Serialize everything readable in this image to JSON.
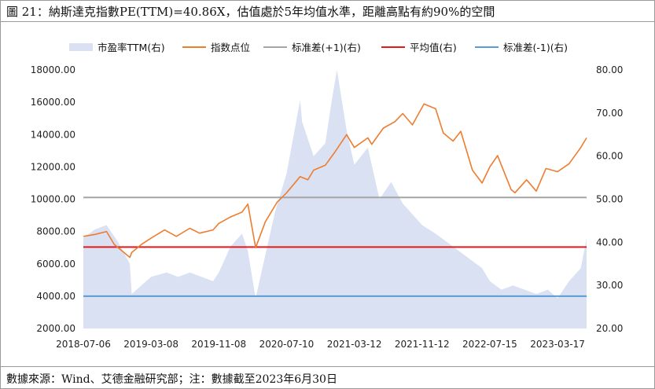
{
  "title": "圖 21：納斯達克指數PE(TTM)=40.86X，估值處於5年均值水準，距離高點有約90%的空間",
  "source": "數據來源：Wind、艾德金融研究部；注：數據截至2023年6月30日",
  "chart_data": {
    "type": "area",
    "legend": [
      {
        "label": "市盈率TTM(右)",
        "kind": "area",
        "color": "#d9e1f2"
      },
      {
        "label": "指数点位",
        "kind": "line",
        "color": "#ed7d31"
      },
      {
        "label": "标准差(+1)(右)",
        "kind": "line",
        "color": "#a5a5a5"
      },
      {
        "label": "平均值(右)",
        "kind": "line",
        "color": "#e31a1c"
      },
      {
        "label": "标准差(-1)(右)",
        "kind": "line",
        "color": "#5b9bd5"
      }
    ],
    "x_ticks": [
      "2018-07-06",
      "2019-03-08",
      "2019-11-08",
      "2020-07-10",
      "2021-03-12",
      "2021-11-12",
      "2022-07-15",
      "2023-03-17"
    ],
    "y_left": {
      "min": 2000,
      "max": 18000,
      "ticks": [
        "2000.00",
        "4000.00",
        "6000.00",
        "8000.00",
        "10000.00",
        "12000.00",
        "14000.00",
        "16000.00",
        "18000.00"
      ]
    },
    "y_right": {
      "min": 20,
      "max": 80,
      "ticks": [
        "20.00",
        "30.00",
        "40.00",
        "50.00",
        "60.00",
        "70.00",
        "80.00"
      ]
    },
    "reference_lines": {
      "std_plus_1": 50.4,
      "mean": 38.9,
      "std_minus_1": 27.5
    },
    "series": [
      {
        "name": "市盈率TTM(右)",
        "axis": "right",
        "x": [
          "2018-07-06",
          "2018-08-17",
          "2018-09-28",
          "2018-11-09",
          "2018-12-21",
          "2018-12-28",
          "2019-02-01",
          "2019-03-08",
          "2019-05-03",
          "2019-06-14",
          "2019-07-26",
          "2019-09-06",
          "2019-10-18",
          "2019-11-08",
          "2019-12-20",
          "2020-01-31",
          "2020-02-21",
          "2020-03-20",
          "2020-04-17",
          "2020-05-29",
          "2020-07-10",
          "2020-08-28",
          "2020-09-04",
          "2020-10-16",
          "2020-11-27",
          "2020-12-18",
          "2021-01-08",
          "2021-02-12",
          "2021-03-12",
          "2021-04-30",
          "2021-06-11",
          "2021-07-23",
          "2021-09-03",
          "2021-10-15",
          "2021-11-12",
          "2021-12-31",
          "2022-02-11",
          "2022-03-25",
          "2022-05-06",
          "2022-06-17",
          "2022-07-15",
          "2022-08-26",
          "2022-10-07",
          "2022-11-18",
          "2022-12-30",
          "2023-02-10",
          "2023-03-17",
          "2023-04-28",
          "2023-06-09",
          "2023-06-30"
        ],
        "values": [
          41,
          43,
          44,
          40,
          35,
          28,
          30,
          32,
          33,
          32,
          33,
          32,
          31,
          33,
          39,
          42,
          38,
          27,
          35,
          47,
          56,
          73,
          68,
          60,
          63,
          72,
          80,
          66,
          58,
          62,
          50,
          54,
          49,
          46,
          44,
          42,
          40,
          38,
          36,
          34,
          31,
          29,
          30,
          29,
          28,
          29,
          27,
          31,
          34,
          40.86
        ]
      },
      {
        "name": "指数点位",
        "axis": "left",
        "x": [
          "2018-07-06",
          "2018-08-17",
          "2018-09-28",
          "2018-10-26",
          "2018-12-21",
          "2018-12-28",
          "2019-02-01",
          "2019-03-08",
          "2019-04-26",
          "2019-06-07",
          "2019-07-26",
          "2019-08-30",
          "2019-10-18",
          "2019-11-08",
          "2019-12-20",
          "2020-01-31",
          "2020-02-21",
          "2020-03-20",
          "2020-04-24",
          "2020-06-05",
          "2020-07-10",
          "2020-08-28",
          "2020-09-25",
          "2020-10-16",
          "2020-11-27",
          "2020-12-31",
          "2021-02-12",
          "2021-03-12",
          "2021-04-30",
          "2021-05-14",
          "2021-06-25",
          "2021-08-06",
          "2021-09-03",
          "2021-10-08",
          "2021-11-19",
          "2021-12-31",
          "2022-01-28",
          "2022-03-04",
          "2022-04-01",
          "2022-05-13",
          "2022-06-17",
          "2022-07-15",
          "2022-08-12",
          "2022-09-30",
          "2022-10-14",
          "2022-11-25",
          "2022-12-30",
          "2023-02-03",
          "2023-03-17",
          "2023-04-28",
          "2023-06-09",
          "2023-06-30"
        ],
        "values": [
          7700,
          7820,
          8000,
          7200,
          6400,
          6700,
          7200,
          7600,
          8100,
          7700,
          8200,
          7900,
          8100,
          8500,
          8900,
          9200,
          9700,
          7000,
          8600,
          9800,
          10400,
          11400,
          11200,
          11800,
          12100,
          12900,
          14000,
          13200,
          13800,
          13400,
          14400,
          14800,
          15300,
          14600,
          15900,
          15600,
          14100,
          13600,
          14200,
          11800,
          11000,
          12000,
          12700,
          10600,
          10400,
          11200,
          10500,
          11900,
          11700,
          12200,
          13200,
          13800
        ]
      }
    ]
  }
}
